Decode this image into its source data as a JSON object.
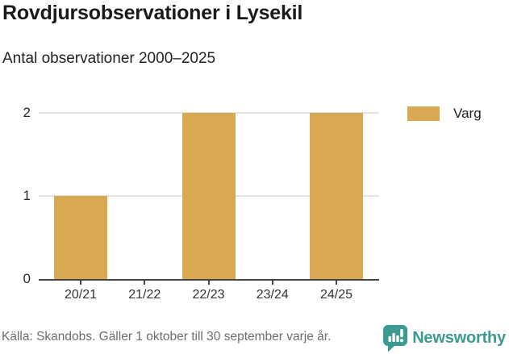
{
  "page": {
    "source_note": "Källa: Skandobs. Gäller 1 oktober till 30 september varje år.",
    "brand": {
      "name": "Newsworthy",
      "color": "#3b9a92",
      "icon": "newsworthy-chart-bubble-icon"
    }
  },
  "chart_data": {
    "type": "bar",
    "title": "Rovdjursobservationer i Lysekil",
    "subtitle": "Antal observationer 2000–2025",
    "categories": [
      "20/21",
      "21/22",
      "22/23",
      "23/24",
      "24/25"
    ],
    "series": [
      {
        "name": "Varg",
        "color": "#d9a952",
        "values": [
          1,
          0,
          2,
          0,
          2
        ]
      }
    ],
    "xlabel": "",
    "ylabel": "",
    "ylim": [
      0,
      2
    ],
    "yticks": [
      0,
      1,
      2
    ],
    "grid": true,
    "legend_position": "top-right",
    "colors": {
      "bar": "#d9a952",
      "gridline": "#e4e4e4",
      "axis": "#454545",
      "tick_label": "#2b2b2b",
      "title": "#1a1a1a",
      "source": "#6e6e6e"
    }
  }
}
